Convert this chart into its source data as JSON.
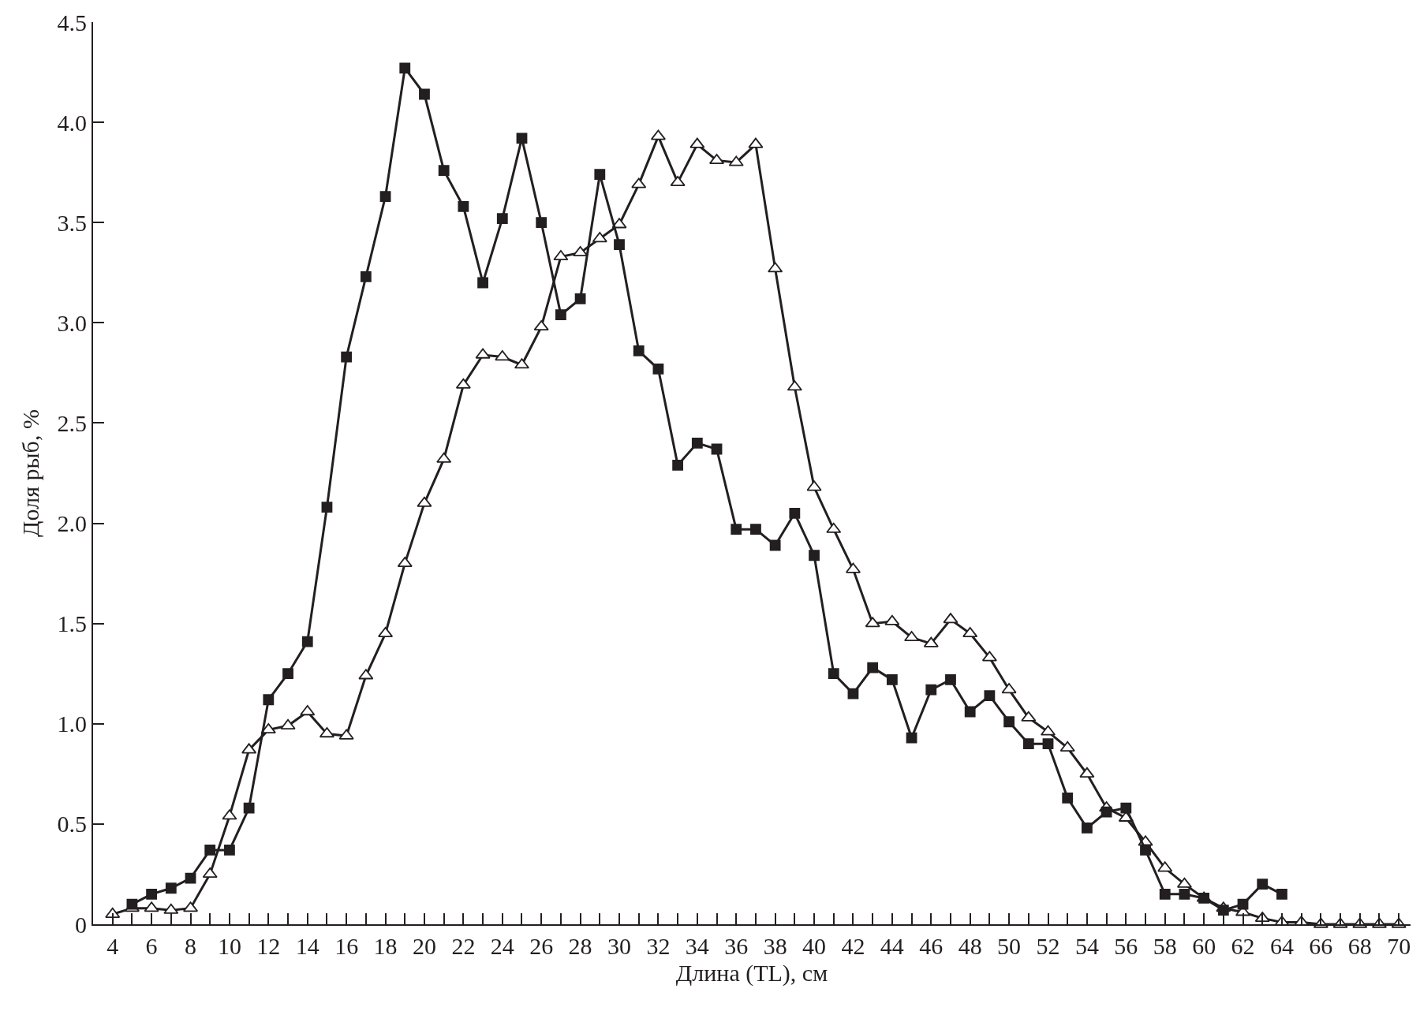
{
  "chart_data": {
    "type": "line",
    "xlabel": "Длина (TL), см",
    "ylabel": "Доля рыб, %",
    "xlim": [
      3,
      70.6
    ],
    "ylim": [
      0,
      4.5
    ],
    "xticks": [
      {
        "value": 3,
        "label": null
      },
      4,
      {
        "value": 5,
        "label": null
      },
      6,
      {
        "value": 7,
        "label": null
      },
      8,
      {
        "value": 9,
        "label": null
      },
      10,
      {
        "value": 11,
        "label": null
      },
      12,
      {
        "value": 13,
        "label": null
      },
      14,
      {
        "value": 15,
        "label": null
      },
      16,
      {
        "value": 17,
        "label": null
      },
      18,
      {
        "value": 19,
        "label": null
      },
      20,
      {
        "value": 21,
        "label": null
      },
      22,
      {
        "value": 23,
        "label": null
      },
      24,
      {
        "value": 25,
        "label": null
      },
      26,
      {
        "value": 27,
        "label": null
      },
      28,
      {
        "value": 29,
        "label": null
      },
      30,
      {
        "value": 31,
        "label": null
      },
      32,
      {
        "value": 33,
        "label": null
      },
      34,
      {
        "value": 35,
        "label": null
      },
      36,
      {
        "value": 37,
        "label": null
      },
      38,
      {
        "value": 39,
        "label": null
      },
      40,
      {
        "value": 41,
        "label": null
      },
      42,
      {
        "value": 43,
        "label": null
      },
      44,
      {
        "value": 45,
        "label": null
      },
      46,
      {
        "value": 47,
        "label": null
      },
      48,
      {
        "value": 49,
        "label": null
      },
      50,
      {
        "value": 51,
        "label": null
      },
      52,
      {
        "value": 53,
        "label": null
      },
      54,
      {
        "value": 55,
        "label": null
      },
      56,
      {
        "value": 57,
        "label": null
      },
      58,
      {
        "value": 59,
        "label": null
      },
      60,
      {
        "value": 61,
        "label": null
      },
      62,
      {
        "value": 63,
        "label": null
      },
      64,
      {
        "value": 65,
        "label": null
      },
      66,
      {
        "value": 67,
        "label": null
      },
      68,
      {
        "value": 69,
        "label": null
      },
      70
    ],
    "yticks": [
      0,
      {
        "value": 0.5,
        "label": "0.5"
      },
      {
        "value": 1,
        "label": "1.0"
      },
      {
        "value": 1.5,
        "label": "1.5"
      },
      {
        "value": 2,
        "label": "2.0"
      },
      {
        "value": 2.5,
        "label": "2.5"
      },
      {
        "value": 3,
        "label": "3.0"
      },
      {
        "value": 3.5,
        "label": "3.5"
      },
      {
        "value": 4,
        "label": "4.0"
      },
      {
        "value": 4.5,
        "label": "4.5"
      }
    ],
    "line_style": "solid",
    "series": [
      {
        "color": "#231f20",
        "marker": "triangle",
        "x": [
          4,
          5,
          6,
          7,
          8,
          9,
          10,
          11,
          12,
          13,
          14,
          15,
          16,
          17,
          18,
          19,
          20,
          21,
          22,
          23,
          24,
          25,
          26,
          27,
          28,
          29,
          30,
          31,
          32,
          33,
          34,
          35,
          36,
          37,
          38,
          39,
          40,
          41,
          42,
          43,
          44,
          45,
          46,
          47,
          48,
          49,
          50,
          51,
          52,
          53,
          54,
          55,
          56,
          57,
          58,
          59,
          60,
          61,
          62,
          63,
          64,
          65,
          66,
          67,
          68,
          69,
          70
        ],
        "values": [
          0.05,
          0.08,
          0.08,
          0.07,
          0.08,
          0.25,
          0.54,
          0.87,
          0.97,
          0.99,
          1.06,
          0.95,
          0.94,
          1.24,
          1.45,
          1.8,
          2.1,
          2.32,
          2.69,
          2.84,
          2.83,
          2.79,
          2.98,
          3.33,
          3.35,
          3.42,
          3.49,
          3.69,
          3.93,
          3.7,
          3.89,
          3.81,
          3.8,
          3.89,
          3.27,
          2.68,
          2.18,
          1.97,
          1.77,
          1.5,
          1.51,
          1.43,
          1.4,
          1.52,
          1.45,
          1.33,
          1.17,
          1.03,
          0.96,
          0.88,
          0.75,
          0.58,
          0.53,
          0.41,
          0.28,
          0.2,
          0.13,
          0.08,
          0.06,
          0.03,
          0.01,
          0.01,
          0,
          0,
          0,
          0,
          0
        ]
      },
      {
        "color": "#231f20",
        "marker": "square",
        "x": [
          5,
          6,
          7,
          8,
          9,
          10,
          11,
          12,
          13,
          14,
          15,
          16,
          17,
          18,
          19,
          20,
          21,
          22,
          23,
          24,
          25,
          26,
          27,
          28,
          29,
          30,
          31,
          32,
          33,
          34,
          35,
          36,
          37,
          38,
          39,
          40,
          41,
          42,
          43,
          44,
          45,
          46,
          47,
          48,
          49,
          50,
          51,
          52,
          53,
          54,
          55,
          56,
          57,
          58,
          59,
          60,
          61,
          62,
          63,
          64
        ],
        "values": [
          0.1,
          0.15,
          0.18,
          0.23,
          0.37,
          0.37,
          0.58,
          1.12,
          1.25,
          1.41,
          2.08,
          2.83,
          3.23,
          3.63,
          4.27,
          4.14,
          3.76,
          3.58,
          3.2,
          3.52,
          3.92,
          3.5,
          3.04,
          3.12,
          3.74,
          3.39,
          2.86,
          2.77,
          2.29,
          2.4,
          2.37,
          1.97,
          1.97,
          1.89,
          2.05,
          1.84,
          1.25,
          1.15,
          1.28,
          1.22,
          0.93,
          1.17,
          1.22,
          1.06,
          1.14,
          1.01,
          0.9,
          0.9,
          0.63,
          0.48,
          0.56,
          0.58,
          0.37,
          0.15,
          0.15,
          0.13,
          0.07,
          0.1,
          0.2,
          0.15
        ]
      }
    ]
  }
}
